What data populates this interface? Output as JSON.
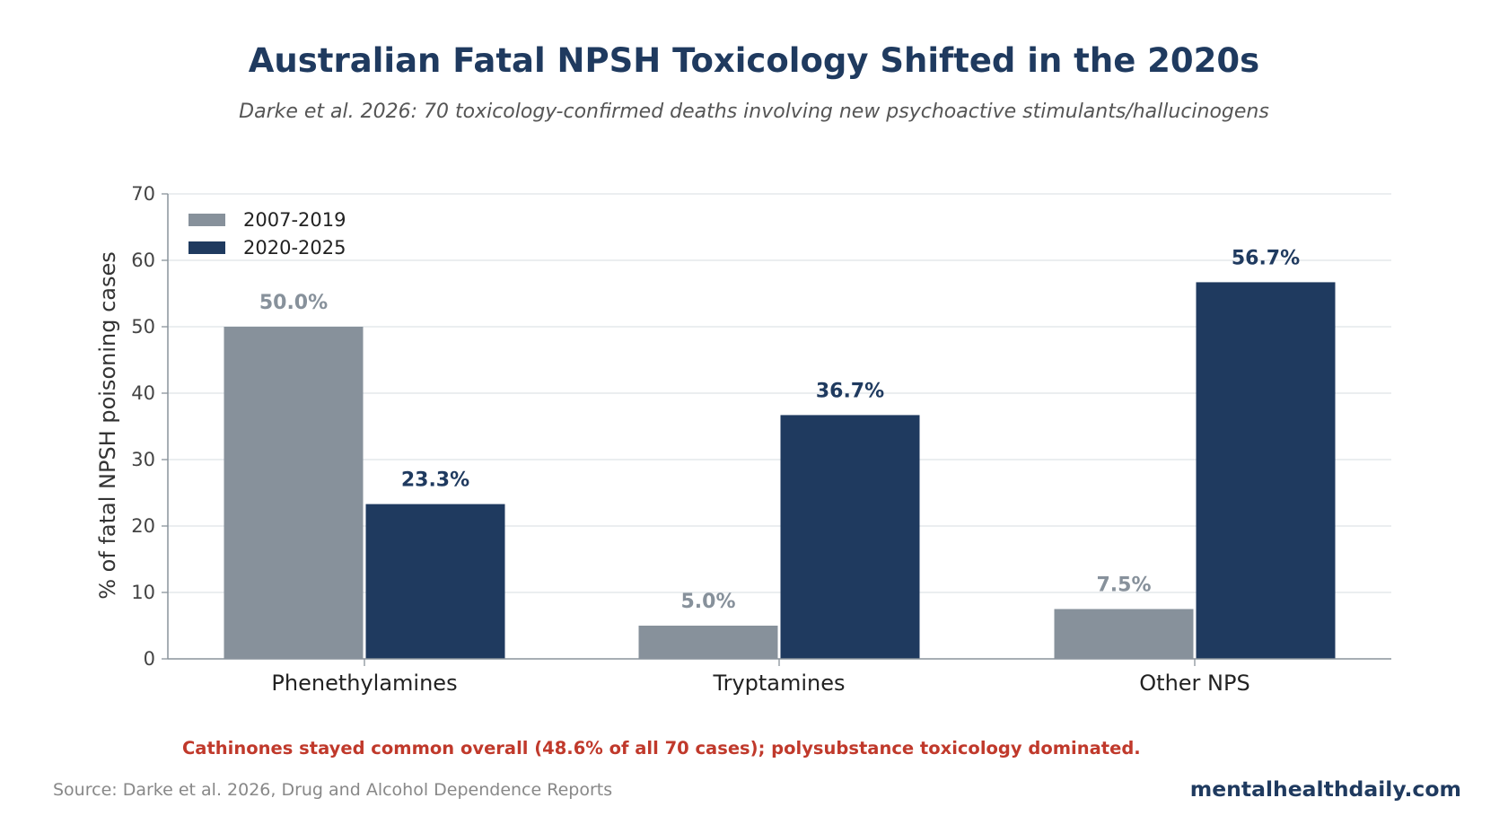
{
  "header": {
    "title": "Australian Fatal NPSH Toxicology Shifted in the 2020s",
    "subtitle": "Darke et al. 2026: 70 toxicology-confirmed deaths involving new psychoactive stimulants/hallucinogens"
  },
  "chart_data": {
    "type": "bar",
    "categories": [
      "Phenethylamines",
      "Tryptamines",
      "Other NPS"
    ],
    "series": [
      {
        "name": "2007-2019",
        "values": [
          50.0,
          5.0,
          7.5
        ],
        "labels": [
          "50.0%",
          "5.0%",
          "7.5%"
        ],
        "color": "#87919b"
      },
      {
        "name": "2020-2025",
        "values": [
          23.3,
          36.7,
          56.7
        ],
        "labels": [
          "23.3%",
          "36.7%",
          "56.7%"
        ],
        "color": "#1f3a5f"
      }
    ],
    "xlabel": "",
    "ylabel": "% of fatal NPSH poisoning cases",
    "ylim": [
      0,
      70
    ],
    "yticks": [
      0,
      10,
      20,
      30,
      40,
      50,
      60,
      70
    ],
    "grid": true,
    "legend": "top-left"
  },
  "footer": {
    "note": "Cathinones stayed common overall (48.6% of all 70 cases); polysubstance toxicology dominated.",
    "source": "Source: Darke et al. 2026, Drug and Alcohol Dependence Reports",
    "brand": "mentalhealthdaily.com"
  }
}
